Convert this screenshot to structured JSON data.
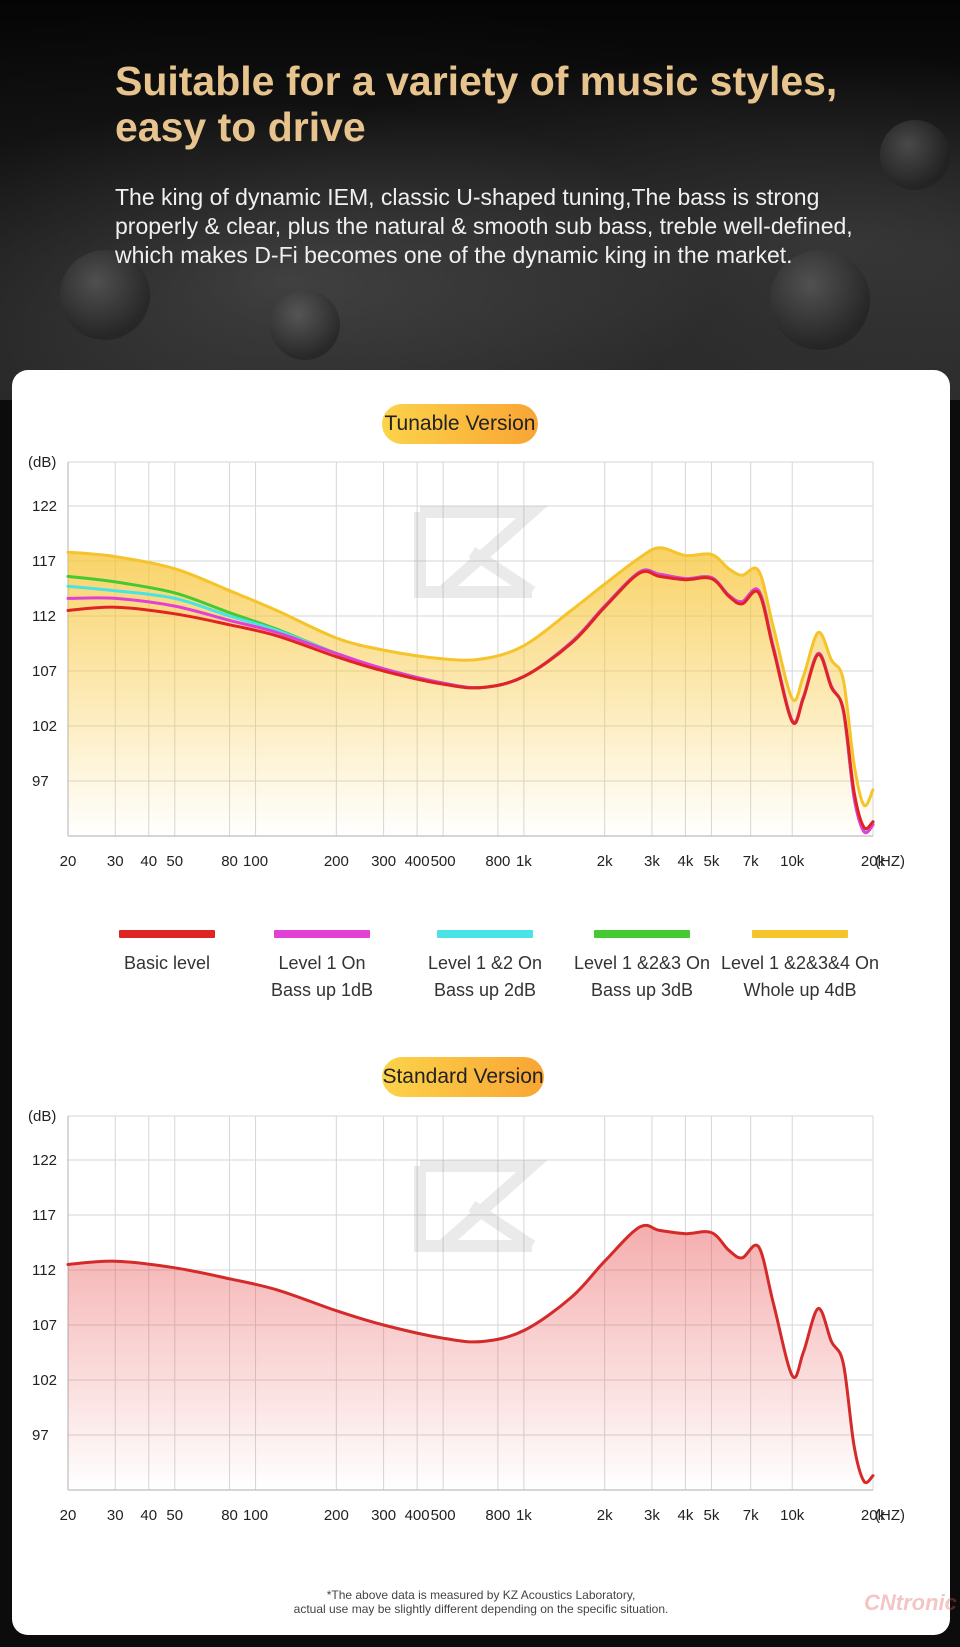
{
  "header": {
    "title": "Suitable for a variety of music styles, easy to drive",
    "description": "The king of dynamic IEM, classic U-shaped tuning,The bass is strong properly & clear, plus the natural & smooth sub bass, treble well-defined, which makes D-Fi becomes one of the dynamic king in the market."
  },
  "colors": {
    "title": "#e7c38d",
    "basic": "#e02424",
    "level1": "#e23fd6",
    "level12": "#49e3e6",
    "level123": "#45c930",
    "level1234": "#f5c32a"
  },
  "legend": [
    {
      "line1": "Basic level",
      "line2": "",
      "color": "#e02424"
    },
    {
      "line1": "Level 1 On",
      "line2": "Bass up 1dB",
      "color": "#e23fd6"
    },
    {
      "line1": "Level 1 &2 On",
      "line2": "Bass up 2dB",
      "color": "#49e3e6"
    },
    {
      "line1": "Level 1 &2&3 On",
      "line2": "Bass up 3dB",
      "color": "#45c930"
    },
    {
      "line1": "Level 1 &2&3&4 On",
      "line2": "Whole up 4dB",
      "color": "#f5c32a"
    }
  ],
  "footnote": {
    "line1": "*The above data is measured by KZ Acoustics Laboratory,",
    "line2": "actual use may be slightly different depending on the specific situation."
  },
  "watermark_text": "CNtronic",
  "chart_data": [
    {
      "type": "line",
      "title": "Tunable Version",
      "xlabel": "(HZ)",
      "ylabel": "(dB)",
      "xscale": "log",
      "xlim": [
        20,
        20000
      ],
      "ylim": [
        92,
        126
      ],
      "grid": true,
      "area_fill": true,
      "xticks": [
        20,
        30,
        40,
        50,
        80,
        100,
        200,
        300,
        400,
        500,
        800,
        1000,
        2000,
        3000,
        4000,
        5000,
        7000,
        10000,
        20000
      ],
      "xtick_labels": [
        "20",
        "30",
        "40",
        "50",
        "80",
        "100",
        "200",
        "300",
        "400",
        "500",
        "800",
        "1k",
        "2k",
        "3k",
        "4k",
        "5k",
        "7k",
        "10k",
        "20k"
      ],
      "yticks": [
        97,
        102,
        107,
        112,
        117,
        122
      ],
      "ytick_labels": [
        "97",
        "102",
        "107",
        "112",
        "117",
        "122"
      ],
      "x": [
        20,
        30,
        50,
        80,
        120,
        200,
        300,
        500,
        700,
        1000,
        1500,
        2000,
        2700,
        3200,
        4000,
        5000,
        5800,
        6500,
        7500,
        8500,
        10000,
        11000,
        12500,
        14000,
        15500,
        17000,
        18500,
        20000
      ],
      "series": [
        {
          "name": "Basic level",
          "color": "#e02424",
          "values": [
            112.5,
            112.8,
            112.2,
            111.2,
            110.2,
            108.3,
            107.0,
            105.8,
            105.5,
            106.5,
            109.5,
            112.8,
            115.9,
            115.6,
            115.3,
            115.4,
            113.8,
            113.1,
            114.1,
            109.0,
            102.4,
            104.5,
            108.5,
            105.5,
            103.5,
            96.0,
            92.8,
            93.3
          ]
        },
        {
          "name": "Level 1 On",
          "color": "#e23fd6",
          "values": [
            113.6,
            113.6,
            112.9,
            111.6,
            110.5,
            108.6,
            107.2,
            105.9,
            105.5,
            106.5,
            109.6,
            112.9,
            116.0,
            115.8,
            115.4,
            115.5,
            113.9,
            113.3,
            114.3,
            109.2,
            102.5,
            104.6,
            108.6,
            105.6,
            103.4,
            95.5,
            92.4,
            93.0
          ]
        },
        {
          "name": "Level 1 &2 On",
          "color": "#49e3e6",
          "values": [
            114.7,
            114.3,
            113.6,
            112.0,
            110.7,
            108.6,
            107.2,
            105.9,
            105.5,
            106.5,
            109.6,
            112.9,
            116.0,
            115.8,
            115.4,
            115.5,
            113.9,
            113.3,
            114.3,
            109.2,
            102.5,
            104.6,
            108.6,
            105.6,
            103.4,
            95.5,
            92.6,
            93.1
          ]
        },
        {
          "name": "Level 1 &2&3 On",
          "color": "#45c930",
          "values": [
            115.6,
            115.1,
            114.1,
            112.3,
            110.8,
            108.6,
            107.2,
            105.9,
            105.5,
            106.5,
            109.6,
            112.9,
            116.0,
            115.8,
            115.4,
            115.5,
            113.9,
            113.3,
            114.3,
            109.2,
            102.5,
            104.6,
            108.6,
            105.6,
            103.4,
            95.5,
            92.7,
            93.2
          ]
        },
        {
          "name": "Level 1 &2&3&4 On",
          "color": "#f5c32a",
          "values": [
            117.8,
            117.4,
            116.3,
            114.3,
            112.5,
            110.0,
            108.9,
            108.1,
            108.1,
            109.3,
            112.5,
            114.9,
            117.3,
            118.2,
            117.5,
            117.6,
            116.3,
            115.7,
            116.1,
            111.0,
            104.5,
            106.5,
            110.5,
            108.0,
            106.2,
            98.5,
            94.8,
            96.2
          ]
        }
      ]
    },
    {
      "type": "area",
      "title": "Standard Version",
      "xlabel": "(HZ)",
      "ylabel": "(dB)",
      "xscale": "log",
      "xlim": [
        20,
        20000
      ],
      "ylim": [
        92,
        126
      ],
      "grid": true,
      "xticks": [
        20,
        30,
        40,
        50,
        80,
        100,
        200,
        300,
        400,
        500,
        800,
        1000,
        2000,
        3000,
        4000,
        5000,
        7000,
        10000,
        20000
      ],
      "xtick_labels": [
        "20",
        "30",
        "40",
        "50",
        "80",
        "100",
        "200",
        "300",
        "400",
        "500",
        "800",
        "1k",
        "2k",
        "3k",
        "4k",
        "5k",
        "7k",
        "10k",
        "20k"
      ],
      "yticks": [
        97,
        102,
        107,
        112,
        117,
        122
      ],
      "ytick_labels": [
        "97",
        "102",
        "107",
        "112",
        "117",
        "122"
      ],
      "x": [
        20,
        30,
        50,
        80,
        120,
        200,
        300,
        500,
        700,
        1000,
        1500,
        2000,
        2700,
        3200,
        4000,
        5000,
        5800,
        6500,
        7500,
        8500,
        10000,
        11000,
        12500,
        14000,
        15500,
        17000,
        18500,
        20000
      ],
      "series": [
        {
          "name": "Basic level",
          "color": "#d42a2a",
          "values": [
            112.5,
            112.8,
            112.2,
            111.2,
            110.2,
            108.3,
            107.0,
            105.8,
            105.5,
            106.5,
            109.5,
            112.8,
            115.9,
            115.6,
            115.3,
            115.4,
            113.8,
            113.1,
            114.1,
            109.0,
            102.4,
            104.5,
            108.5,
            105.5,
            103.5,
            96.0,
            92.8,
            93.3
          ]
        }
      ]
    }
  ]
}
